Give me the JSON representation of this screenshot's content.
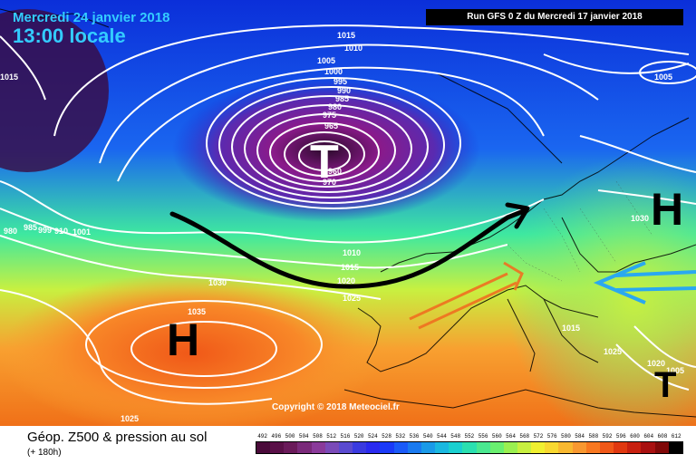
{
  "header": {
    "date": "Mercredi 24 janvier 2018",
    "time": "13:00 locale",
    "run": "Run GFS 0 Z du Mercredi 17 janvier 2018"
  },
  "copyright": "Copyright © 2018 Meteociel.fr",
  "footer": {
    "product": "Géop. Z500 & pression au sol",
    "lead": "(+ 180h)"
  },
  "scale": {
    "labels": [
      "492",
      "496",
      "500",
      "504",
      "508",
      "512",
      "516",
      "520",
      "524",
      "528",
      "532",
      "536",
      "540",
      "544",
      "548",
      "552",
      "556",
      "560",
      "564",
      "568",
      "572",
      "576",
      "580",
      "584",
      "588",
      "592",
      "596",
      "600",
      "604",
      "608",
      "612"
    ],
    "colors": [
      "#4a0a3a",
      "#5a1048",
      "#6a1a5a",
      "#7a2a7a",
      "#8a3a9a",
      "#7a4ab8",
      "#5a4ad0",
      "#3a3ae0",
      "#2a2af0",
      "#1a3af8",
      "#1a5af8",
      "#1a7af0",
      "#1a9ae8",
      "#1ab8e0",
      "#1ad0d0",
      "#2ae0b0",
      "#4ae890",
      "#6af070",
      "#9af050",
      "#c8f040",
      "#f0f030",
      "#f8d830",
      "#f8b830",
      "#f89830",
      "#f87820",
      "#f05818",
      "#e03810",
      "#c82010",
      "#a81010",
      "#800808",
      "#000000"
    ]
  },
  "pressure_centers": [
    {
      "type": "low",
      "label": "T"
    },
    {
      "type": "high",
      "label": "H"
    },
    {
      "type": "high",
      "label": "H"
    },
    {
      "type": "low",
      "label": "T"
    }
  ],
  "isobar_labels": [
    "1015",
    "1010",
    "1005",
    "1000",
    "995",
    "990",
    "985",
    "980",
    "975",
    "965",
    "960",
    "970",
    "1015",
    "1005",
    "980",
    "985",
    "999",
    "910",
    "1001",
    "1030",
    "1035",
    "1010",
    "1015",
    "1020",
    "1025",
    "1030",
    "1025",
    "1005",
    "1025",
    "1020",
    "1015"
  ]
}
